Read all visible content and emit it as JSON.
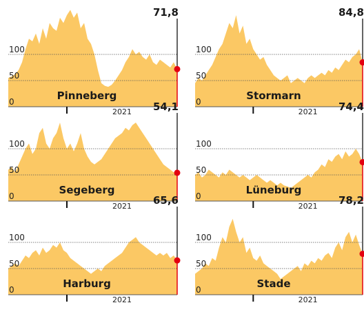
{
  "chart_data": [
    {
      "type": "area",
      "title": "Pinneberg",
      "color": "#fbc864",
      "marker_color": "#e3000f",
      "grid": true,
      "ylim": [
        0,
        200
      ],
      "yticks": [
        0,
        50,
        100
      ],
      "xlim": [
        0,
        49
      ],
      "xticks": [
        {
          "value": 17,
          "label": "2021"
        }
      ],
      "values": [
        55,
        58,
        62,
        70,
        85,
        110,
        130,
        125,
        140,
        120,
        150,
        130,
        160,
        150,
        145,
        170,
        160,
        175,
        185,
        170,
        180,
        150,
        160,
        130,
        120,
        100,
        70,
        45,
        40,
        38,
        42,
        50,
        60,
        70,
        85,
        95,
        110,
        100,
        105,
        95,
        90,
        100,
        85,
        80,
        90,
        85,
        80,
        75,
        85,
        71.8
      ],
      "value_labels": [
        null,
        null,
        null,
        null,
        null,
        null,
        null,
        null,
        null,
        null,
        null,
        null,
        null,
        null,
        null,
        null,
        null,
        null,
        null,
        null,
        null,
        null,
        null,
        null,
        null,
        null,
        null,
        null,
        null,
        null,
        null,
        null,
        null,
        null,
        null,
        null,
        null,
        null,
        null,
        null,
        null,
        null,
        null,
        null,
        null,
        null,
        null,
        null,
        null,
        "71,8"
      ]
    },
    {
      "type": "area",
      "title": "Stormarn",
      "color": "#fbc864",
      "marker_color": "#e3000f",
      "grid": true,
      "ylim": [
        0,
        200
      ],
      "yticks": [
        0,
        50,
        100
      ],
      "xlim": [
        0,
        49
      ],
      "xticks": [
        {
          "value": 17,
          "label": "2021"
        }
      ],
      "values": [
        45,
        55,
        50,
        60,
        70,
        80,
        95,
        110,
        120,
        140,
        160,
        150,
        175,
        140,
        155,
        120,
        130,
        110,
        100,
        90,
        95,
        80,
        70,
        60,
        55,
        50,
        55,
        60,
        45,
        50,
        55,
        50,
        45,
        55,
        60,
        55,
        60,
        65,
        60,
        70,
        65,
        75,
        70,
        80,
        90,
        85,
        95,
        100,
        110,
        84.8
      ],
      "value_labels": [
        null,
        null,
        null,
        null,
        null,
        null,
        null,
        null,
        null,
        null,
        null,
        null,
        null,
        null,
        null,
        null,
        null,
        null,
        null,
        null,
        null,
        null,
        null,
        null,
        null,
        null,
        null,
        null,
        null,
        null,
        null,
        null,
        null,
        null,
        null,
        null,
        null,
        null,
        null,
        null,
        null,
        null,
        null,
        null,
        null,
        null,
        null,
        null,
        null,
        "84,8"
      ]
    },
    {
      "type": "area",
      "title": "Segeberg",
      "color": "#fbc864",
      "marker_color": "#e3000f",
      "grid": true,
      "ylim": [
        0,
        200
      ],
      "yticks": [
        0,
        50,
        100
      ],
      "xlim": [
        0,
        49
      ],
      "xticks": [
        {
          "value": 17,
          "label": "2021"
        }
      ],
      "values": [
        60,
        65,
        55,
        70,
        85,
        100,
        110,
        90,
        100,
        130,
        140,
        110,
        100,
        120,
        130,
        150,
        120,
        100,
        110,
        95,
        110,
        130,
        100,
        85,
        75,
        70,
        75,
        80,
        90,
        100,
        110,
        120,
        125,
        130,
        140,
        135,
        145,
        150,
        140,
        130,
        120,
        110,
        100,
        90,
        80,
        70,
        65,
        60,
        55,
        54.1
      ],
      "value_labels": [
        null,
        null,
        null,
        null,
        null,
        null,
        null,
        null,
        null,
        null,
        null,
        null,
        null,
        null,
        null,
        null,
        null,
        null,
        null,
        null,
        null,
        null,
        null,
        null,
        null,
        null,
        null,
        null,
        null,
        null,
        null,
        null,
        null,
        null,
        null,
        null,
        null,
        null,
        null,
        null,
        null,
        null,
        null,
        null,
        null,
        null,
        null,
        null,
        null,
        "54,1"
      ]
    },
    {
      "type": "area",
      "title": "Lüneburg",
      "color": "#fbc864",
      "marker_color": "#e3000f",
      "grid": true,
      "ylim": [
        0,
        200
      ],
      "yticks": [
        0,
        50,
        100
      ],
      "xlim": [
        0,
        49
      ],
      "xticks": [
        {
          "value": 17,
          "label": "2021"
        }
      ],
      "values": [
        50,
        55,
        45,
        50,
        60,
        55,
        50,
        45,
        55,
        50,
        60,
        55,
        50,
        45,
        50,
        45,
        40,
        45,
        50,
        45,
        40,
        35,
        40,
        35,
        30,
        35,
        30,
        28,
        25,
        30,
        35,
        40,
        45,
        50,
        45,
        55,
        60,
        70,
        65,
        80,
        75,
        85,
        90,
        80,
        95,
        85,
        90,
        100,
        90,
        74.4
      ],
      "value_labels": [
        null,
        null,
        null,
        null,
        null,
        null,
        null,
        null,
        null,
        null,
        null,
        null,
        null,
        null,
        null,
        null,
        null,
        null,
        null,
        null,
        null,
        null,
        null,
        null,
        null,
        null,
        null,
        null,
        null,
        null,
        null,
        null,
        null,
        null,
        null,
        null,
        null,
        null,
        null,
        null,
        null,
        null,
        null,
        null,
        null,
        null,
        null,
        null,
        null,
        "74,4"
      ]
    },
    {
      "type": "area",
      "title": "Harburg",
      "color": "#fbc864",
      "marker_color": "#e3000f",
      "grid": true,
      "ylim": [
        0,
        200
      ],
      "yticks": [
        0,
        50,
        100
      ],
      "xlim": [
        0,
        49
      ],
      "xticks": [
        {
          "value": 17,
          "label": "2021"
        }
      ],
      "values": [
        50,
        55,
        60,
        55,
        65,
        75,
        70,
        80,
        85,
        75,
        90,
        80,
        85,
        95,
        90,
        100,
        85,
        80,
        70,
        65,
        60,
        55,
        50,
        45,
        40,
        45,
        50,
        45,
        55,
        60,
        65,
        70,
        75,
        80,
        90,
        100,
        105,
        110,
        100,
        95,
        90,
        85,
        80,
        75,
        80,
        75,
        80,
        70,
        75,
        65.6
      ],
      "value_labels": [
        null,
        null,
        null,
        null,
        null,
        null,
        null,
        null,
        null,
        null,
        null,
        null,
        null,
        null,
        null,
        null,
        null,
        null,
        null,
        null,
        null,
        null,
        null,
        null,
        null,
        null,
        null,
        null,
        null,
        null,
        null,
        null,
        null,
        null,
        null,
        null,
        null,
        null,
        null,
        null,
        null,
        null,
        null,
        null,
        null,
        null,
        null,
        null,
        null,
        "65,6"
      ]
    },
    {
      "type": "area",
      "title": "Stade",
      "color": "#fbc864",
      "marker_color": "#e3000f",
      "grid": true,
      "ylim": [
        0,
        200
      ],
      "yticks": [
        0,
        50,
        100
      ],
      "xlim": [
        0,
        49
      ],
      "xticks": [
        {
          "value": 17,
          "label": "2021"
        }
      ],
      "values": [
        40,
        45,
        50,
        60,
        55,
        70,
        65,
        90,
        110,
        100,
        130,
        145,
        120,
        100,
        110,
        80,
        90,
        70,
        65,
        75,
        60,
        55,
        50,
        45,
        40,
        30,
        35,
        40,
        45,
        50,
        55,
        45,
        60,
        55,
        65,
        60,
        70,
        65,
        75,
        80,
        70,
        90,
        100,
        85,
        110,
        120,
        100,
        115,
        95,
        78.2
      ],
      "value_labels": [
        null,
        null,
        null,
        null,
        null,
        null,
        null,
        null,
        null,
        null,
        null,
        null,
        null,
        null,
        null,
        null,
        null,
        null,
        null,
        null,
        null,
        null,
        null,
        null,
        null,
        null,
        null,
        null,
        null,
        null,
        null,
        null,
        null,
        null,
        null,
        null,
        null,
        null,
        null,
        null,
        null,
        null,
        null,
        null,
        null,
        null,
        null,
        null,
        null,
        "78,2"
      ]
    }
  ]
}
